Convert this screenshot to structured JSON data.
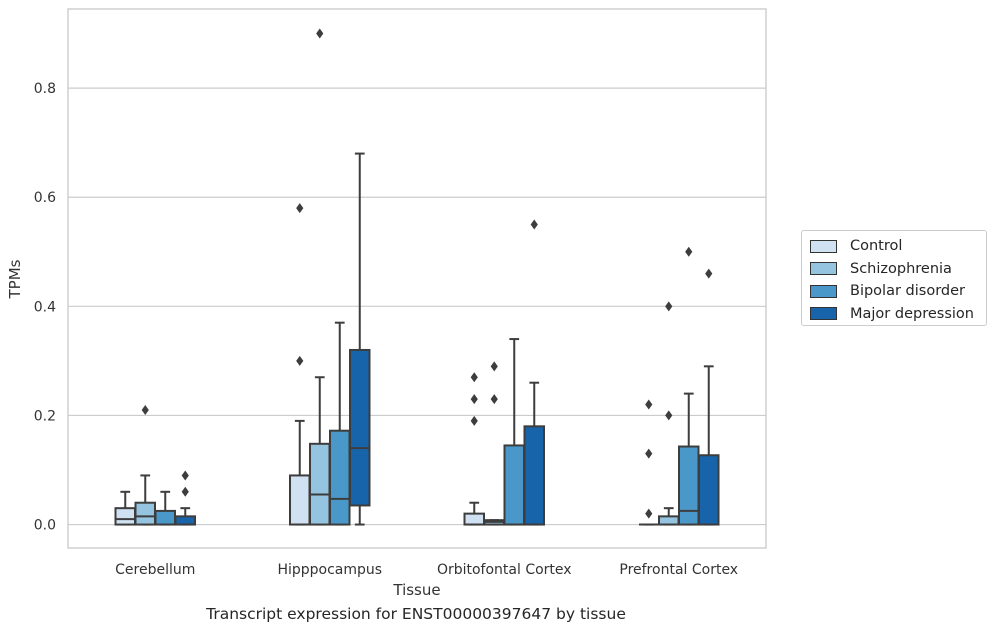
{
  "chart_data": {
    "type": "boxplot",
    "xlabel": "Tissue",
    "ylabel": "TPMs",
    "ylim": [
      -0.043,
      0.945
    ],
    "yticks": [
      0.0,
      0.2,
      0.4,
      0.6,
      0.8
    ],
    "ytick_labels": [
      "0.0",
      "0.2",
      "0.4",
      "0.6",
      "0.8"
    ],
    "grid": "horizontal",
    "legend_position": "right",
    "categories": [
      "Cerebellum",
      "Hipppocampus",
      "Orbitofontal Cortex",
      "Prefrontal Cortex"
    ],
    "series": [
      {
        "name": "Control",
        "color": "#d0e1f2",
        "boxes": [
          {
            "whislo": 0.0,
            "q1": 0.0,
            "med": 0.01,
            "q3": 0.03,
            "whishi": 0.06,
            "fliers": []
          },
          {
            "whislo": 0.0,
            "q1": 0.0,
            "med": 0.0,
            "q3": 0.09,
            "whishi": 0.19,
            "fliers": [
              0.3,
              0.58
            ]
          },
          {
            "whislo": 0.0,
            "q1": 0.0,
            "med": 0.0,
            "q3": 0.02,
            "whishi": 0.04,
            "fliers": [
              0.19,
              0.23,
              0.27
            ]
          },
          {
            "whislo": 0.0,
            "q1": 0.0,
            "med": 0.0,
            "q3": 0.0,
            "whishi": 0.0,
            "fliers": [
              0.02,
              0.13,
              0.22
            ]
          }
        ]
      },
      {
        "name": "Schizophrenia",
        "color": "#94c4df",
        "boxes": [
          {
            "whislo": 0.0,
            "q1": 0.0,
            "med": 0.015,
            "q3": 0.04,
            "whishi": 0.09,
            "fliers": [
              0.21
            ]
          },
          {
            "whislo": 0.0,
            "q1": 0.0,
            "med": 0.055,
            "q3": 0.148,
            "whishi": 0.27,
            "fliers": [
              0.9
            ]
          },
          {
            "whislo": 0.0,
            "q1": 0.0,
            "med": 0.005,
            "q3": 0.008,
            "whishi": 0.008,
            "fliers": [
              0.23,
              0.29
            ]
          },
          {
            "whislo": 0.0,
            "q1": 0.0,
            "med": 0.0,
            "q3": 0.015,
            "whishi": 0.03,
            "fliers": [
              0.2,
              0.4
            ]
          }
        ]
      },
      {
        "name": "Bipolar disorder",
        "color": "#4a98c9",
        "boxes": [
          {
            "whislo": 0.0,
            "q1": 0.0,
            "med": 0.0,
            "q3": 0.025,
            "whishi": 0.06,
            "fliers": []
          },
          {
            "whislo": 0.0,
            "q1": 0.0,
            "med": 0.047,
            "q3": 0.172,
            "whishi": 0.37,
            "fliers": []
          },
          {
            "whislo": 0.0,
            "q1": 0.0,
            "med": 0.0,
            "q3": 0.145,
            "whishi": 0.34,
            "fliers": []
          },
          {
            "whislo": 0.0,
            "q1": 0.0,
            "med": 0.025,
            "q3": 0.143,
            "whishi": 0.24,
            "fliers": [
              0.5
            ]
          }
        ]
      },
      {
        "name": "Major depression",
        "color": "#1764ab",
        "boxes": [
          {
            "whislo": 0.0,
            "q1": 0.0,
            "med": 0.0,
            "q3": 0.015,
            "whishi": 0.03,
            "fliers": [
              0.06,
              0.09
            ]
          },
          {
            "whislo": 0.0,
            "q1": 0.035,
            "med": 0.14,
            "q3": 0.32,
            "whishi": 0.68,
            "fliers": []
          },
          {
            "whislo": 0.0,
            "q1": 0.0,
            "med": 0.0,
            "q3": 0.18,
            "whishi": 0.26,
            "fliers": [
              0.55
            ]
          },
          {
            "whislo": 0.0,
            "q1": 0.0,
            "med": 0.0,
            "q3": 0.127,
            "whishi": 0.29,
            "fliers": [
              0.46
            ]
          }
        ]
      }
    ]
  },
  "caption": "Transcript expression for ENST00000397647 by tissue"
}
